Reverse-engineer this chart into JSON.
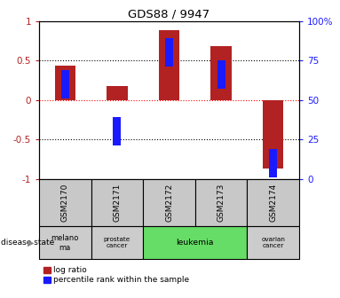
{
  "title": "GDS88 / 9947",
  "samples": [
    "GSM2170",
    "GSM2171",
    "GSM2172",
    "GSM2173",
    "GSM2174"
  ],
  "log_ratio": [
    0.43,
    0.18,
    0.88,
    0.68,
    -0.87
  ],
  "percentile_rank_pct": [
    60,
    30,
    80,
    66,
    10
  ],
  "ylim": [
    -1,
    1
  ],
  "y2lim": [
    0,
    100
  ],
  "yticks_left": [
    -1,
    -0.5,
    0,
    0.5,
    1
  ],
  "yticks_left_labels": [
    "-1",
    "-0.5",
    "0",
    "0.5",
    "1"
  ],
  "yticks_right": [
    0,
    25,
    50,
    75,
    100
  ],
  "yticks_right_labels": [
    "0",
    "25",
    "50",
    "75",
    "100%"
  ],
  "hlines_dotted": [
    -0.5,
    0.5
  ],
  "hline_red": 0,
  "bar_color_red": "#b22222",
  "bar_color_blue": "#1a1aff",
  "bar_width": 0.4,
  "blue_marker_size": 0.18,
  "sample_bg_color": "#c8c8c8",
  "ds_groups": [
    {
      "label": "melano\nma",
      "start": 0,
      "end": 1,
      "color": "#cccccc",
      "fontsize": 8
    },
    {
      "label": "prostate\ncancer",
      "start": 1,
      "end": 2,
      "color": "#cccccc",
      "fontsize": 7
    },
    {
      "label": "leukemia",
      "start": 2,
      "end": 4,
      "color": "#66dd66",
      "fontsize": 9
    },
    {
      "label": "ovarian\ncancer",
      "start": 4,
      "end": 5,
      "color": "#cccccc",
      "fontsize": 7
    }
  ],
  "legend_red": "log ratio",
  "legend_blue": "percentile rank within the sample",
  "disease_label": "disease state"
}
